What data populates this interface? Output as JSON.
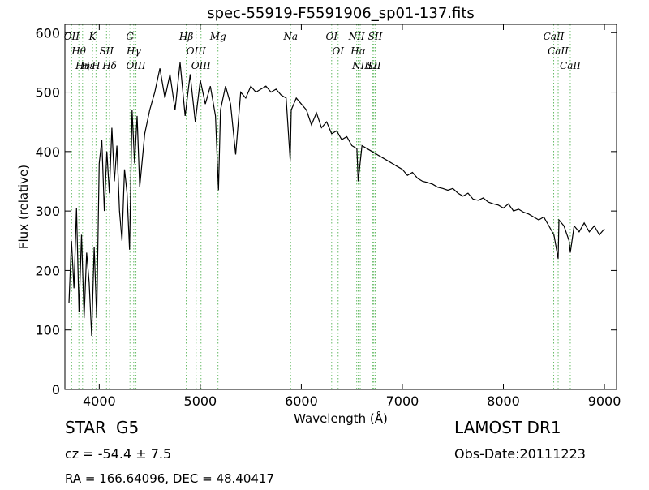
{
  "chart_data": {
    "type": "line",
    "title": "spec-55919-F5591906_sp01-137.fits",
    "x_label": "Wavelength (Å)",
    "y_label": "Flux (relative)",
    "xlim": [
      3660,
      9120
    ],
    "ylim": [
      0,
      614
    ],
    "xticks": [
      4000,
      5000,
      6000,
      7000,
      8000,
      9000
    ],
    "yticks": [
      0,
      100,
      200,
      300,
      400,
      500,
      600
    ],
    "x": [
      3700,
      3725,
      3750,
      3775,
      3800,
      3825,
      3850,
      3875,
      3900,
      3925,
      3950,
      3975,
      4000,
      4025,
      4050,
      4075,
      4100,
      4125,
      4150,
      4175,
      4200,
      4225,
      4250,
      4275,
      4300,
      4325,
      4350,
      4375,
      4400,
      4450,
      4500,
      4550,
      4600,
      4650,
      4700,
      4750,
      4800,
      4850,
      4900,
      4950,
      5000,
      5050,
      5100,
      5150,
      5180,
      5200,
      5250,
      5300,
      5350,
      5400,
      5450,
      5500,
      5550,
      5600,
      5650,
      5700,
      5750,
      5800,
      5850,
      5890,
      5900,
      5950,
      6000,
      6050,
      6100,
      6150,
      6200,
      6250,
      6300,
      6350,
      6400,
      6450,
      6500,
      6550,
      6563,
      6600,
      6650,
      6700,
      6750,
      6800,
      6850,
      6900,
      6950,
      7000,
      7050,
      7100,
      7150,
      7200,
      7250,
      7300,
      7350,
      7400,
      7450,
      7500,
      7550,
      7600,
      7650,
      7700,
      7750,
      7800,
      7850,
      7900,
      7950,
      8000,
      8050,
      8100,
      8150,
      8200,
      8250,
      8300,
      8350,
      8400,
      8450,
      8500,
      8542,
      8550,
      8600,
      8650,
      8662,
      8700,
      8750,
      8800,
      8850,
      8900,
      8950,
      9000
    ],
    "series": [
      {
        "color": "#000000",
        "values": [
          145,
          250,
          170,
          305,
          130,
          260,
          120,
          230,
          180,
          90,
          240,
          120,
          380,
          420,
          300,
          400,
          330,
          440,
          350,
          410,
          300,
          250,
          370,
          330,
          235,
          470,
          380,
          460,
          340,
          430,
          470,
          500,
          540,
          490,
          530,
          470,
          550,
          460,
          530,
          450,
          520,
          480,
          510,
          460,
          335,
          470,
          510,
          480,
          395,
          500,
          490,
          510,
          500,
          505,
          510,
          500,
          505,
          495,
          490,
          385,
          470,
          490,
          480,
          470,
          445,
          465,
          440,
          450,
          430,
          435,
          420,
          425,
          410,
          405,
          350,
          410,
          405,
          400,
          395,
          390,
          385,
          380,
          375,
          370,
          360,
          365,
          355,
          350,
          348,
          345,
          340,
          338,
          335,
          338,
          330,
          325,
          330,
          320,
          318,
          322,
          315,
          312,
          310,
          305,
          312,
          300,
          303,
          298,
          295,
          290,
          285,
          290,
          275,
          260,
          220,
          285,
          275,
          250,
          230,
          275,
          265,
          280,
          265,
          275,
          260,
          270
        ]
      }
    ],
    "line_color": "#66bb66",
    "lines": [
      {
        "name": "OII",
        "wavelength": 3727
      },
      {
        "name": "Hθ",
        "wavelength": 3798
      },
      {
        "name": "Hη",
        "wavelength": 3835
      },
      {
        "name": "Hε",
        "wavelength": 3889
      },
      {
        "name": "K",
        "wavelength": 3934
      },
      {
        "name": "H",
        "wavelength": 3968
      },
      {
        "name": "SII",
        "wavelength": 4072
      },
      {
        "name": "Hδ",
        "wavelength": 4102
      },
      {
        "name": "G",
        "wavelength": 4304
      },
      {
        "name": "Hγ",
        "wavelength": 4341
      },
      {
        "name": "OIII",
        "wavelength": 4363
      },
      {
        "name": "Hβ",
        "wavelength": 4861
      },
      {
        "name": "OIII",
        "wavelength": 4959
      },
      {
        "name": "OIII",
        "wavelength": 5007
      },
      {
        "name": "Mg",
        "wavelength": 5175
      },
      {
        "name": "Na",
        "wavelength": 5894
      },
      {
        "name": "OI",
        "wavelength": 6300
      },
      {
        "name": "OI",
        "wavelength": 6364
      },
      {
        "name": "NII",
        "wavelength": 6548
      },
      {
        "name": "Hα",
        "wavelength": 6563
      },
      {
        "name": "NII",
        "wavelength": 6583
      },
      {
        "name": "Li",
        "wavelength": 6708
      },
      {
        "name": "SII",
        "wavelength": 6717
      },
      {
        "name": "SII",
        "wavelength": 6731
      },
      {
        "name": "CaII",
        "wavelength": 8498
      },
      {
        "name": "CaII",
        "wavelength": 8542
      },
      {
        "name": "CaII",
        "wavelength": 8662
      }
    ],
    "annotations": {
      "class": "STAR",
      "subclass": "G5",
      "cz": "cz = -54.4 ± 7.5",
      "coords": "RA = 166.64096, DEC = 48.40417",
      "survey": "LAMOST DR1",
      "date": "Obs-Date:20111223"
    }
  }
}
